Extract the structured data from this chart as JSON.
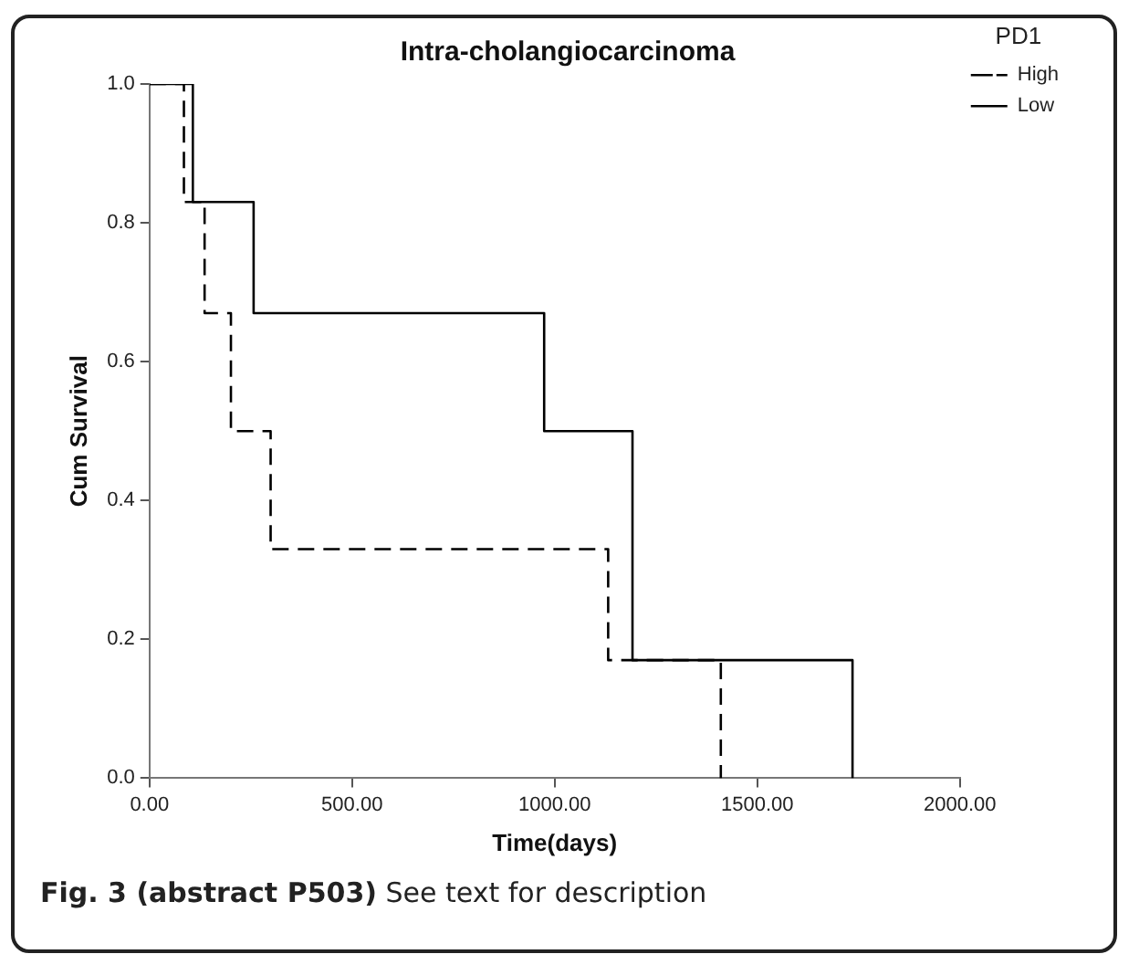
{
  "chart_data": {
    "type": "step",
    "title": "Intra-cholangiocarcinoma",
    "xlabel": "Time(days)",
    "ylabel": "Cum Survival",
    "legend_title": "PD1",
    "legend": "top right",
    "grid": false,
    "marker": "none",
    "xlim": [
      0,
      2000
    ],
    "xticks": [
      {
        "value": 0,
        "label": "0.00"
      },
      {
        "value": 500,
        "label": "500.00"
      },
      {
        "value": 1000,
        "label": "1000.00"
      },
      {
        "value": 1500,
        "label": "1500.00"
      },
      {
        "value": 2000,
        "label": "2000.00"
      }
    ],
    "ylim": [
      0,
      1
    ],
    "yticks": [
      {
        "value": 0,
        "label": "0.0"
      },
      {
        "value": 0.2,
        "label": "0.2"
      },
      {
        "value": 0.4,
        "label": "0.4"
      },
      {
        "value": 0.6,
        "label": "0.6"
      },
      {
        "value": 0.8,
        "label": "0.8"
      },
      {
        "value": 1,
        "label": "1.0"
      }
    ],
    "series": [
      {
        "name": "High",
        "color": "#000000",
        "line_style": "dashed",
        "x": [
          0,
          85,
          136,
          201,
          299,
          1132,
          1410
        ],
        "values": [
          1,
          0.83,
          0.67,
          0.5,
          0.33,
          0.17,
          0
        ]
      },
      {
        "name": "Low",
        "color": "#000000",
        "line_style": "solid",
        "x": [
          0,
          107,
          257,
          974,
          1192,
          1735
        ],
        "values": [
          1,
          0.83,
          0.67,
          0.5,
          0.17,
          0
        ]
      }
    ],
    "annotations": [
      "Fig. 3 (abstract P503) See text for description"
    ]
  }
}
